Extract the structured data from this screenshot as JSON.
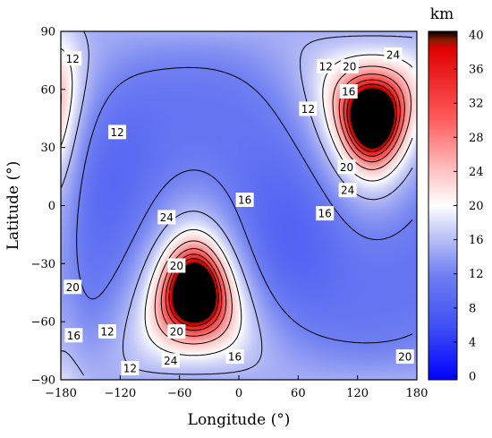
{
  "chart_data": {
    "type": "heatmap",
    "title": "",
    "xlabel": "Longitude (°)",
    "ylabel": "Latitude (°)",
    "xlim": [
      -180,
      180
    ],
    "ylim": [
      -90,
      90
    ],
    "x_ticks": [
      "−180",
      "−120",
      "−60",
      "0",
      "60",
      "120",
      "180"
    ],
    "x_tick_values": [
      -180,
      -120,
      -60,
      0,
      60,
      120,
      180
    ],
    "y_ticks": [
      "90",
      "60",
      "30",
      "0",
      "−30",
      "−60",
      "−90"
    ],
    "y_tick_values": [
      90,
      60,
      30,
      0,
      -30,
      -60,
      -90
    ],
    "colorbar": {
      "unit_label": "km",
      "range": [
        0,
        40
      ],
      "ticks": [
        "0",
        "4",
        "8",
        "12",
        "16",
        "20",
        "24",
        "28",
        "32",
        "36",
        "40"
      ],
      "tick_values": [
        0,
        4,
        8,
        12,
        16,
        20,
        24,
        28,
        32,
        36,
        40
      ],
      "colors": [
        "#0000ff",
        "#6f7ff1",
        "#e8e8fb",
        "#ffffff",
        "#ff3b3b",
        "#d40000",
        "#000000"
      ]
    },
    "singularities": [
      {
        "lon": -45,
        "lat": -45
      },
      {
        "lon": 135,
        "lat": 45
      }
    ],
    "saturated_bands": [
      {
        "center_lon": -45,
        "description": "values > 40 km"
      },
      {
        "center_lon": 135,
        "description": "values > 40 km"
      }
    ],
    "contour_levels": [
      12,
      16,
      20,
      24
    ],
    "contour_labels": [
      {
        "text": "12",
        "lon": -168,
        "lat": 76
      },
      {
        "text": "12",
        "lon": -123,
        "lat": 38
      },
      {
        "text": "24",
        "lon": -73,
        "lat": -6
      },
      {
        "text": "20",
        "lon": -63,
        "lat": -31
      },
      {
        "text": "20",
        "lon": -168,
        "lat": -42
      },
      {
        "text": "16",
        "lon": -167,
        "lat": -67
      },
      {
        "text": "12",
        "lon": -133,
        "lat": -65
      },
      {
        "text": "12",
        "lon": -110,
        "lat": -84
      },
      {
        "text": "20",
        "lon": -63,
        "lat": -65
      },
      {
        "text": "24",
        "lon": -69,
        "lat": -80
      },
      {
        "text": "16",
        "lon": -4,
        "lat": -78
      },
      {
        "text": "16",
        "lon": 6,
        "lat": 3
      },
      {
        "text": "12",
        "lon": 70,
        "lat": 50
      },
      {
        "text": "12",
        "lon": 88,
        "lat": 72
      },
      {
        "text": "20",
        "lon": 112,
        "lat": 72
      },
      {
        "text": "16",
        "lon": 111,
        "lat": 59
      },
      {
        "text": "24",
        "lon": 156,
        "lat": 78
      },
      {
        "text": "20",
        "lon": 109,
        "lat": 20
      },
      {
        "text": "24",
        "lon": 110,
        "lat": 8
      },
      {
        "text": "16",
        "lon": 87,
        "lat": -4
      },
      {
        "text": "20",
        "lon": 168,
        "lat": -78
      }
    ]
  }
}
